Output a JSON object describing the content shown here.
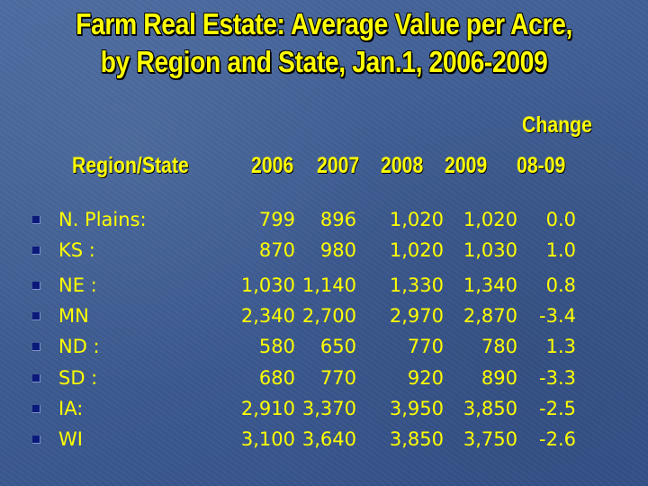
{
  "slide": {
    "title_line1": "Farm Real Estate: Average Value per Acre,",
    "title_line2": "by Region and State, Jan.1, 2006-2009",
    "change_label": "Change"
  },
  "table": {
    "headers": {
      "region": "Region/State",
      "y2006": "2006",
      "y2007": "2007",
      "y2008": "2008",
      "y2009": "2009",
      "change": "08-09"
    },
    "rows": [
      {
        "label": "N. Plains:",
        "y2006": "799",
        "y2007": "896",
        "y2008": "1,020",
        "y2009": "1,020",
        "change": "0.0"
      },
      {
        "label": "KS :",
        "y2006": "870",
        "y2007": "980",
        "y2008": "1,020",
        "y2009": "1,030",
        "change": "1.0"
      },
      {
        "label": "NE :",
        "y2006": "1,030",
        "y2007": "1,140",
        "y2008": "1,330",
        "y2009": "1,340",
        "change": "0.8"
      },
      {
        "label": "MN",
        "y2006": "2,340",
        "y2007": "2,700",
        "y2008": "2,970",
        "y2009": "2,870",
        "change": "-3.4"
      },
      {
        "label": "ND :",
        "y2006": "580",
        "y2007": "650",
        "y2008": "770",
        "y2009": "780",
        "change": "1.3"
      },
      {
        "label": "SD :",
        "y2006": "680",
        "y2007": "770",
        "y2008": "920",
        "y2009": "890",
        "change": "-3.3"
      },
      {
        "label": "IA:",
        "y2006": "2,910",
        "y2007": "3,370",
        "y2008": "3,950",
        "y2009": "3,850",
        "change": "-2.5"
      },
      {
        "label": "WI",
        "y2006": "3,100",
        "y2007": "3,640",
        "y2008": "3,850",
        "y2009": "3,750",
        "change": "-2.6"
      }
    ]
  },
  "colors": {
    "background": "#3f5e94",
    "text": "#ffff00",
    "bullet": "#0b1a7a"
  },
  "icons": {
    "bullet": "square-bullet-icon"
  }
}
